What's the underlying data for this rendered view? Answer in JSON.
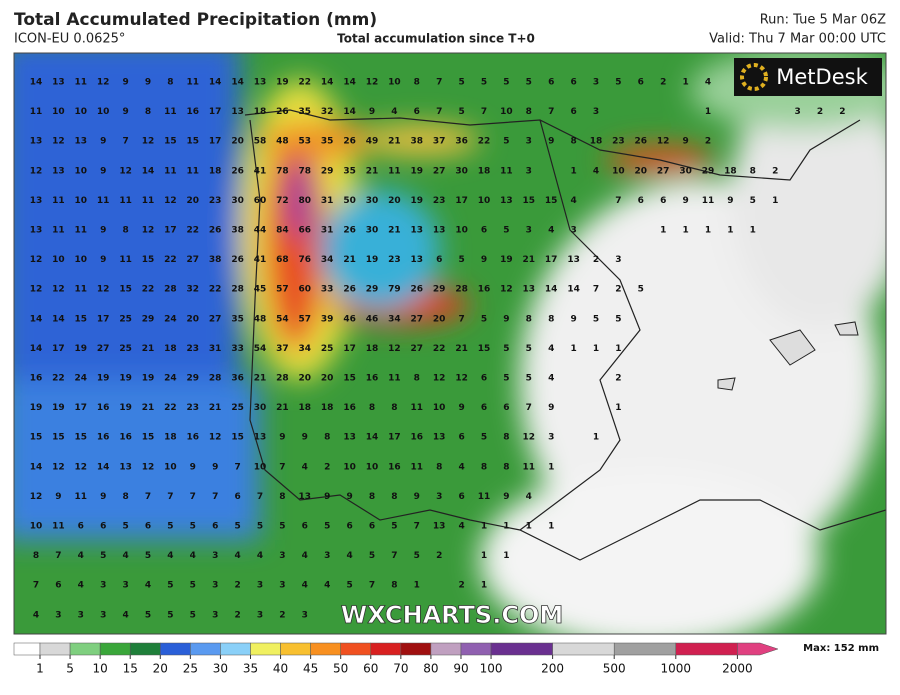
{
  "header": {
    "title": "Total Accumulated Precipitation (mm)",
    "model": "ICON-EU 0.0625°",
    "subtitle": "Total accumulation since T+0",
    "run": "Run: Tue 5 Mar 06Z",
    "valid": "Valid: Thu 7 Mar 00:00 UTC"
  },
  "logo": "MetDesk",
  "watermark": "WXCHARTS.COM",
  "map": {
    "rows": [
      [
        14,
        13,
        11,
        12,
        9,
        9,
        8,
        11,
        14,
        14,
        13,
        19,
        22,
        14,
        14,
        12,
        10,
        8,
        7,
        5,
        5,
        5,
        5,
        6,
        6,
        3,
        5,
        6,
        2,
        1,
        4
      ],
      [
        11,
        10,
        10,
        10,
        9,
        8,
        11,
        16,
        17,
        13,
        18,
        26,
        35,
        32,
        14,
        9,
        4,
        6,
        7,
        5,
        7,
        10,
        8,
        7,
        6,
        3,
        null,
        null,
        null,
        null,
        1,
        null,
        null,
        null,
        3,
        2,
        2
      ],
      [
        13,
        12,
        13,
        9,
        7,
        12,
        15,
        15,
        17,
        20,
        58,
        48,
        53,
        35,
        26,
        49,
        21,
        38,
        37,
        36,
        22,
        5,
        3,
        9,
        8,
        18,
        23,
        26,
        12,
        9,
        2
      ],
      [
        12,
        13,
        10,
        9,
        12,
        14,
        11,
        11,
        18,
        26,
        41,
        78,
        78,
        29,
        35,
        21,
        11,
        19,
        27,
        30,
        18,
        11,
        3,
        null,
        1,
        4,
        10,
        20,
        27,
        30,
        29,
        18,
        8,
        2
      ],
      [
        13,
        11,
        10,
        11,
        11,
        11,
        12,
        20,
        23,
        30,
        60,
        72,
        80,
        31,
        50,
        30,
        20,
        19,
        23,
        17,
        10,
        13,
        15,
        15,
        4,
        null,
        7,
        6,
        6,
        9,
        11,
        9,
        5,
        1
      ],
      [
        13,
        11,
        11,
        9,
        8,
        12,
        17,
        22,
        26,
        38,
        44,
        84,
        66,
        31,
        26,
        30,
        21,
        13,
        13,
        10,
        6,
        5,
        3,
        4,
        3,
        null,
        null,
        null,
        1,
        1,
        1,
        1,
        1
      ],
      [
        12,
        10,
        10,
        9,
        11,
        15,
        22,
        27,
        38,
        26,
        41,
        68,
        76,
        34,
        21,
        19,
        23,
        13,
        6,
        5,
        9,
        19,
        21,
        17,
        13,
        2,
        3
      ],
      [
        12,
        12,
        11,
        12,
        15,
        22,
        28,
        32,
        22,
        28,
        45,
        57,
        60,
        33,
        26,
        29,
        79,
        26,
        29,
        28,
        16,
        12,
        13,
        14,
        14,
        7,
        2,
        5
      ],
      [
        14,
        14,
        15,
        17,
        25,
        29,
        24,
        20,
        27,
        35,
        48,
        54,
        57,
        39,
        46,
        46,
        34,
        27,
        20,
        7,
        5,
        9,
        8,
        8,
        9,
        5,
        5
      ],
      [
        14,
        17,
        19,
        27,
        25,
        21,
        18,
        23,
        31,
        33,
        54,
        37,
        34,
        25,
        17,
        18,
        12,
        27,
        22,
        21,
        15,
        5,
        5,
        4,
        1,
        1,
        1
      ],
      [
        16,
        22,
        24,
        19,
        19,
        19,
        24,
        29,
        28,
        36,
        21,
        28,
        20,
        20,
        15,
        16,
        11,
        8,
        12,
        12,
        6,
        5,
        5,
        4,
        null,
        null,
        2
      ],
      [
        19,
        19,
        17,
        16,
        19,
        21,
        22,
        23,
        21,
        25,
        30,
        21,
        18,
        18,
        16,
        8,
        8,
        11,
        10,
        9,
        6,
        6,
        7,
        9,
        null,
        null,
        1
      ],
      [
        15,
        15,
        15,
        16,
        16,
        15,
        18,
        16,
        12,
        15,
        13,
        9,
        9,
        8,
        13,
        14,
        17,
        16,
        13,
        6,
        5,
        8,
        12,
        3,
        null,
        1
      ],
      [
        14,
        12,
        12,
        14,
        13,
        12,
        10,
        9,
        9,
        7,
        10,
        7,
        4,
        2,
        10,
        10,
        16,
        11,
        8,
        4,
        8,
        8,
        11,
        1
      ],
      [
        12,
        9,
        11,
        9,
        8,
        7,
        7,
        7,
        7,
        6,
        7,
        8,
        13,
        9,
        9,
        8,
        8,
        9,
        3,
        6,
        11,
        9,
        4
      ],
      [
        10,
        11,
        6,
        6,
        5,
        6,
        5,
        5,
        6,
        5,
        5,
        5,
        6,
        5,
        6,
        6,
        5,
        7,
        13,
        4,
        1,
        1,
        1,
        1
      ],
      [
        8,
        7,
        4,
        5,
        4,
        5,
        4,
        4,
        3,
        4,
        4,
        3,
        4,
        3,
        4,
        5,
        7,
        5,
        2,
        null,
        1,
        1
      ],
      [
        7,
        6,
        4,
        3,
        3,
        4,
        5,
        5,
        3,
        2,
        3,
        3,
        4,
        4,
        5,
        7,
        8,
        1,
        null,
        2,
        1
      ],
      [
        4,
        3,
        3,
        3,
        4,
        5,
        5,
        5,
        3,
        2,
        3,
        2,
        3
      ]
    ]
  },
  "colorbar": {
    "ticks": [
      1,
      5,
      10,
      15,
      20,
      25,
      30,
      35,
      40,
      45,
      50,
      60,
      70,
      80,
      90,
      100,
      200,
      500,
      1000,
      2000
    ],
    "colors": [
      "#ffffff",
      "#d8d8d8",
      "#7fcf7f",
      "#3aa63a",
      "#1f7f3a",
      "#2a5fd8",
      "#5a9af0",
      "#8ad0f8",
      "#f0f060",
      "#f8c030",
      "#f89020",
      "#f05020",
      "#d82020",
      "#a01010",
      "#c0a0c0",
      "#9060b0",
      "#6a3090",
      "#d8d8d8",
      "#a0a0a0",
      "#d02050",
      "#e04080"
    ],
    "max": "Max: 152 mm"
  }
}
